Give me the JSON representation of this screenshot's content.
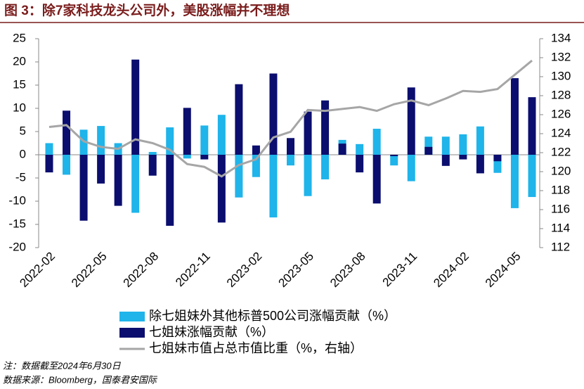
{
  "chart_data": {
    "type": "bar",
    "title": "图 3：除7家科技龙头公司外，美股涨幅并不理想",
    "note": "注：数据截至2024年6月30日",
    "source": "数据来源：Bloomberg，国泰君安国际",
    "categories": [
      "2022-02",
      null,
      null,
      "2022-05",
      null,
      null,
      "2022-08",
      null,
      null,
      "2022-11",
      null,
      null,
      "2023-02",
      null,
      null,
      "2023-05",
      null,
      null,
      "2023-08",
      null,
      null,
      "2023-11",
      null,
      null,
      "2024-02",
      null,
      null,
      "2024-05",
      null
    ],
    "series": [
      {
        "name": "除七姐妹外其他标普500公司涨幅贡献（%）",
        "color": "#1fb4ea",
        "type": "bar",
        "values": [
          2.5,
          -4.3,
          5.4,
          6.2,
          2.5,
          -12.5,
          0.6,
          5.9,
          -0.8,
          6.3,
          8.6,
          -9.2,
          -4.8,
          -13.5,
          -2.3,
          -8.9,
          -5.3,
          3.2,
          2.3,
          5.6,
          -2.3,
          -5.7,
          3.9,
          3.9,
          4.4,
          6.1,
          -3.9,
          -11.5,
          -9.1
        ]
      },
      {
        "name": "七姐妹涨幅贡献（%）",
        "color": "#0b0e6e",
        "type": "bar",
        "values": [
          -3.8,
          9.5,
          -14.2,
          -6.2,
          -11,
          20.5,
          -4.5,
          -15.3,
          10.1,
          -1,
          -14.6,
          15.2,
          2.0,
          17.5,
          3.6,
          9.3,
          11.7,
          2.4,
          -3.8,
          -10.5,
          -0.3,
          14.5,
          1.7,
          -2.4,
          -1,
          -4,
          -1.4,
          16.5,
          12.4
        ]
      },
      {
        "name": "七姐妹市值占总市值比重（%，右轴）",
        "color": "#a6a6a6",
        "type": "line",
        "axis": "y2",
        "values": [
          124.7,
          124.9,
          123.2,
          122.6,
          122.4,
          123.4,
          123.0,
          122.3,
          120.8,
          120.5,
          119.5,
          120.7,
          121.3,
          123.6,
          124.2,
          126.5,
          126.4,
          126.6,
          126.8,
          126.4,
          127.1,
          127.5,
          127.0,
          127.7,
          128.5,
          128.4,
          128.7,
          130.2,
          131.7
        ]
      }
    ],
    "ylim": [
      -20,
      25
    ],
    "yticks": [
      -20,
      -15,
      -10,
      -5,
      0,
      5,
      10,
      15,
      20,
      25
    ],
    "y2lim": [
      112,
      134
    ],
    "y2ticks": [
      112,
      114,
      116,
      118,
      120,
      122,
      124,
      126,
      128,
      130,
      132,
      134
    ]
  }
}
